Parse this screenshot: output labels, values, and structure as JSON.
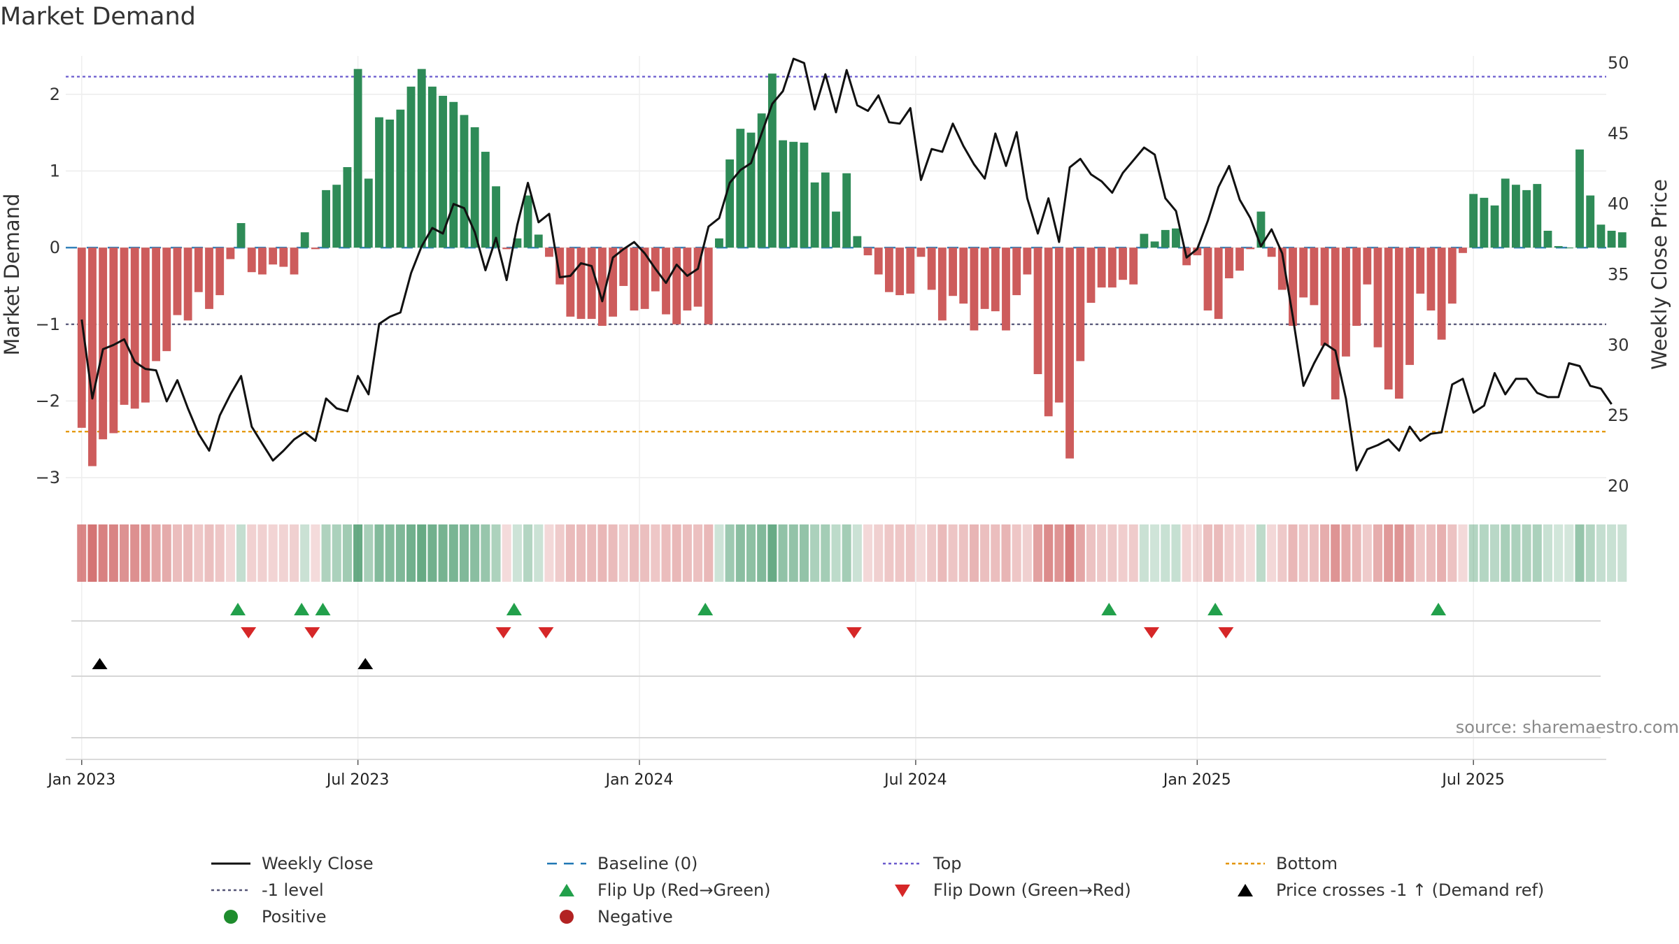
{
  "title": "Market Demand",
  "source": "source: sharemaestro.com",
  "colors": {
    "positive_bar": "#2e8b57",
    "negative_bar": "#cd5c5c",
    "price_line": "#111111",
    "baseline": "#1f77b4",
    "top": "#6a5acd",
    "bottom": "#e39400",
    "level": "#555577",
    "flip_up": "#22a04b",
    "flip_down": "#d62728",
    "cross": "#000000",
    "positive_dot": "#1e8c2d",
    "negative_dot": "#b22222"
  },
  "legend": [
    {
      "id": "weekly-close",
      "label": "Weekly Close",
      "style": "line"
    },
    {
      "id": "baseline",
      "label": "Baseline (0)",
      "style": "dash"
    },
    {
      "id": "top",
      "label": "Top",
      "style": "dot-purple"
    },
    {
      "id": "bottom",
      "label": "Bottom",
      "style": "dot-orange"
    },
    {
      "id": "level",
      "label": "-1 level",
      "style": "dot-gray"
    },
    {
      "id": "flip-up",
      "label": "Flip Up (Red→Green)",
      "style": "tri-up-green"
    },
    {
      "id": "flip-down",
      "label": "Flip Down (Green→Red)",
      "style": "tri-down-red"
    },
    {
      "id": "price-cross",
      "label": "Price crosses -1 ↑ (Demand ref)",
      "style": "tri-up-black"
    },
    {
      "id": "positive",
      "label": "Positive",
      "style": "dot-green"
    },
    {
      "id": "negative",
      "label": "Negative",
      "style": "dot-red"
    }
  ],
  "chart_data": {
    "type": "bar",
    "title": "Market Demand",
    "ylabel": "Market Demand",
    "y2label": "Weekly Close Price",
    "ylim": [
      -3.2,
      2.5
    ],
    "y2lim": [
      19.5,
      50.5
    ],
    "yticks": [
      -3,
      -2,
      -1,
      0,
      1,
      2
    ],
    "yticklabels": [
      "−3",
      "−2",
      "−1",
      "0",
      "1",
      "2"
    ],
    "y2ticks": [
      20,
      25,
      30,
      35,
      40,
      45,
      50
    ],
    "y2ticklabels": [
      "20",
      "25",
      "30",
      "35",
      "40",
      "45",
      "50"
    ],
    "reference_lines": {
      "top": 2.23,
      "bottom": -2.4,
      "level": -1,
      "baseline": 0
    },
    "x_start_index": -1.5,
    "x_end_index": 143.5,
    "xticks": [
      {
        "index": 0,
        "label": "Jan 2023"
      },
      {
        "index": 26,
        "label": "Jul 2023"
      },
      {
        "index": 52.5,
        "label": "Jan 2024"
      },
      {
        "index": 78.5,
        "label": "Jul 2024"
      },
      {
        "index": 105,
        "label": "Jan 2025"
      },
      {
        "index": 131,
        "label": "Jul 2025"
      }
    ],
    "demand_values": [
      -2.35,
      -2.85,
      -2.5,
      -2.42,
      -2.05,
      -2.1,
      -2.02,
      -1.48,
      -1.35,
      -0.88,
      -0.95,
      -0.58,
      -0.8,
      -0.62,
      -0.15,
      0.32,
      -0.32,
      -0.35,
      -0.22,
      -0.25,
      -0.35,
      0.2,
      -0.02,
      0.75,
      0.82,
      1.05,
      2.33,
      0.9,
      1.7,
      1.67,
      1.8,
      2.1,
      2.33,
      2.1,
      1.98,
      1.9,
      1.73,
      1.57,
      1.25,
      0.8,
      -0.02,
      0.12,
      0.68,
      0.17,
      -0.12,
      -0.48,
      -0.9,
      -0.93,
      -0.93,
      -1.02,
      -0.9,
      -0.5,
      -0.82,
      -0.8,
      -0.57,
      -0.87,
      -1.0,
      -0.82,
      -0.77,
      -1.0,
      0.12,
      1.15,
      1.55,
      1.5,
      1.75,
      2.27,
      1.4,
      1.38,
      1.37,
      0.85,
      0.98,
      0.47,
      0.97,
      0.15,
      -0.1,
      -0.35,
      -0.58,
      -0.62,
      -0.6,
      -0.12,
      -0.55,
      -0.95,
      -0.63,
      -0.73,
      -1.08,
      -0.8,
      -0.83,
      -1.08,
      -0.62,
      -0.35,
      -1.65,
      -2.2,
      -2.02,
      -2.75,
      -1.48,
      -0.72,
      -0.52,
      -0.52,
      -0.42,
      -0.48,
      0.18,
      0.08,
      0.23,
      0.25,
      -0.23,
      -0.1,
      -0.82,
      -0.93,
      -0.4,
      -0.3,
      -0.02,
      0.47,
      -0.12,
      -0.55,
      -1.02,
      -0.65,
      -0.75,
      -1.28,
      -1.98,
      -1.42,
      -1.02,
      -0.48,
      -1.3,
      -1.85,
      -1.97,
      -1.53,
      -0.6,
      -0.82,
      -1.2,
      -0.73,
      -0.07,
      0.7,
      0.65,
      0.55,
      0.9,
      0.82,
      0.75,
      0.83,
      0.22,
      0.02,
      0.0,
      1.28,
      0.68,
      0.3,
      0.22,
      0.2
    ],
    "weekly_close": [
      31.8,
      26.2,
      29.7,
      30.0,
      30.4,
      28.8,
      28.3,
      28.2,
      26.0,
      27.5,
      25.5,
      23.7,
      22.5,
      25.0,
      26.5,
      27.8,
      24.2,
      23.0,
      21.8,
      22.5,
      23.3,
      23.8,
      23.2,
      26.2,
      25.5,
      25.3,
      27.8,
      26.5,
      31.5,
      32.0,
      32.3,
      35.1,
      37.0,
      38.3,
      37.9,
      40.0,
      39.7,
      38.0,
      35.3,
      37.6,
      34.6,
      38.5,
      41.5,
      38.7,
      39.3,
      34.8,
      34.9,
      35.8,
      35.6,
      33.1,
      36.2,
      36.8,
      37.3,
      36.5,
      35.4,
      34.4,
      35.7,
      34.9,
      35.4,
      38.4,
      39.0,
      41.5,
      42.4,
      42.9,
      45.0,
      47.1,
      48.0,
      50.3,
      50.0,
      46.7,
      49.2,
      46.5,
      49.5,
      47.0,
      46.6,
      47.7,
      45.8,
      45.7,
      46.8,
      41.7,
      43.9,
      43.7,
      45.7,
      44.1,
      42.8,
      41.8,
      45.0,
      42.7,
      45.1,
      40.4,
      37.9,
      40.4,
      37.3,
      42.6,
      43.2,
      42.1,
      41.6,
      40.8,
      42.2,
      43.1,
      44.0,
      43.5,
      40.4,
      39.5,
      36.2,
      36.8,
      38.8,
      41.2,
      42.7,
      40.3,
      39.0,
      37.0,
      38.2,
      36.5,
      32.0,
      27.1,
      28.7,
      30.1,
      29.6,
      26.2,
      21.1,
      22.6,
      22.9,
      23.3,
      22.5,
      24.2,
      23.2,
      23.7,
      23.8,
      27.2,
      27.6,
      25.2,
      25.7,
      28.0,
      26.5,
      27.6,
      27.6,
      26.6,
      26.3,
      26.3,
      28.7,
      28.5,
      27.1,
      26.9,
      25.8
    ],
    "flip_up_indices": [
      14.7,
      20.7,
      22.7,
      40.7,
      58.7,
      96.7,
      106.7,
      127.7
    ],
    "flip_down_indices": [
      15.7,
      21.7,
      39.7,
      43.7,
      72.7,
      100.7,
      107.7
    ],
    "price_cross_indices": [
      1.7,
      26.7
    ]
  }
}
